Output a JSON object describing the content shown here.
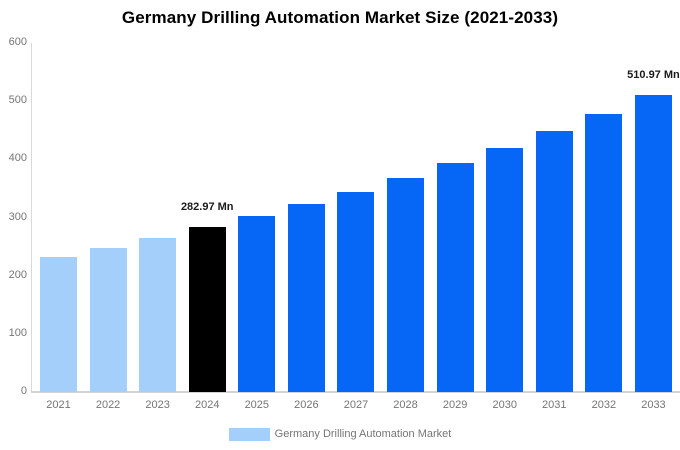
{
  "title": "Germany Drilling Automation Market Size (2021-2033)",
  "legend": {
    "label": "Germany Drilling Automation Market"
  },
  "colors": {
    "historical_bar": "#a3cffa",
    "base_year_bar": "#000000",
    "forecast_bar": "#0667f6",
    "axis_line": "#d4d4d4",
    "tick_text": "#757575",
    "annotation_text": "#1a1a1a",
    "title_text": "#000000"
  },
  "chart_data": {
    "type": "bar",
    "title": "Germany Drilling Automation Market Size (2021-2033)",
    "xlabel": "",
    "ylabel": "",
    "ylim": [
      0,
      600
    ],
    "yticks": [
      0,
      100,
      200,
      300,
      400,
      500,
      600
    ],
    "grid": false,
    "legend_position": "bottom",
    "categories": [
      "2021",
      "2022",
      "2023",
      "2024",
      "2025",
      "2026",
      "2027",
      "2028",
      "2029",
      "2030",
      "2031",
      "2032",
      "2033"
    ],
    "series": [
      {
        "name": "Germany Drilling Automation Market",
        "unit": "Mn",
        "values": [
          232.3,
          248.1,
          265.0,
          282.97,
          302.2,
          322.7,
          344.6,
          368.1,
          393.1,
          419.8,
          448.3,
          478.7,
          510.97
        ]
      }
    ],
    "bar_roles": [
      "historical",
      "historical",
      "historical",
      "base_year",
      "forecast",
      "forecast",
      "forecast",
      "forecast",
      "forecast",
      "forecast",
      "forecast",
      "forecast",
      "forecast"
    ],
    "annotations": [
      {
        "category": "2024",
        "text": "282.97 Mn"
      },
      {
        "category": "2033",
        "text": "510.97 Mn"
      }
    ]
  }
}
